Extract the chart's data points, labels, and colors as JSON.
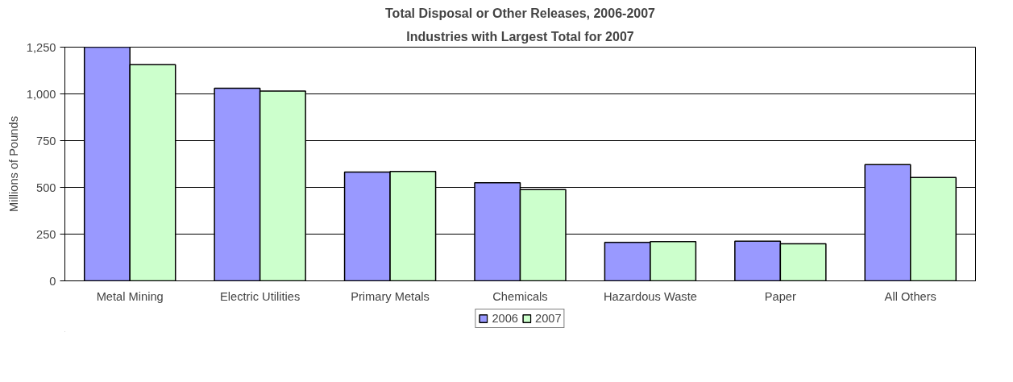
{
  "chart_data": {
    "type": "bar",
    "title": "Total Disposal or Other Releases, 2006-2007",
    "subtitle": "Industries with Largest Total for 2007",
    "ylabel": "Millions of Pounds",
    "categories": [
      "Metal Mining",
      "Electric Utilities",
      "Primary Metals",
      "Chemicals",
      "Hazardous Waste",
      "Paper",
      "All Others"
    ],
    "series": [
      {
        "name": "2006",
        "color": "#9999ff",
        "values": [
          1250,
          1030,
          582,
          525,
          206,
          212,
          622
        ]
      },
      {
        "name": "2007",
        "color": "#ccffcc",
        "values": [
          1156,
          1015,
          585,
          488,
          210,
          198,
          553
        ]
      }
    ],
    "ylim": [
      0,
      1250
    ],
    "yticks": [
      0,
      {
        "value": 250,
        "label": "250"
      },
      {
        "value": 500,
        "label": "500"
      },
      {
        "value": 750,
        "label": "750"
      },
      {
        "value": 1000,
        "label": "1,000"
      },
      {
        "value": 1250,
        "label": "1,250"
      }
    ],
    "grid": "y",
    "legend": "bottom"
  }
}
